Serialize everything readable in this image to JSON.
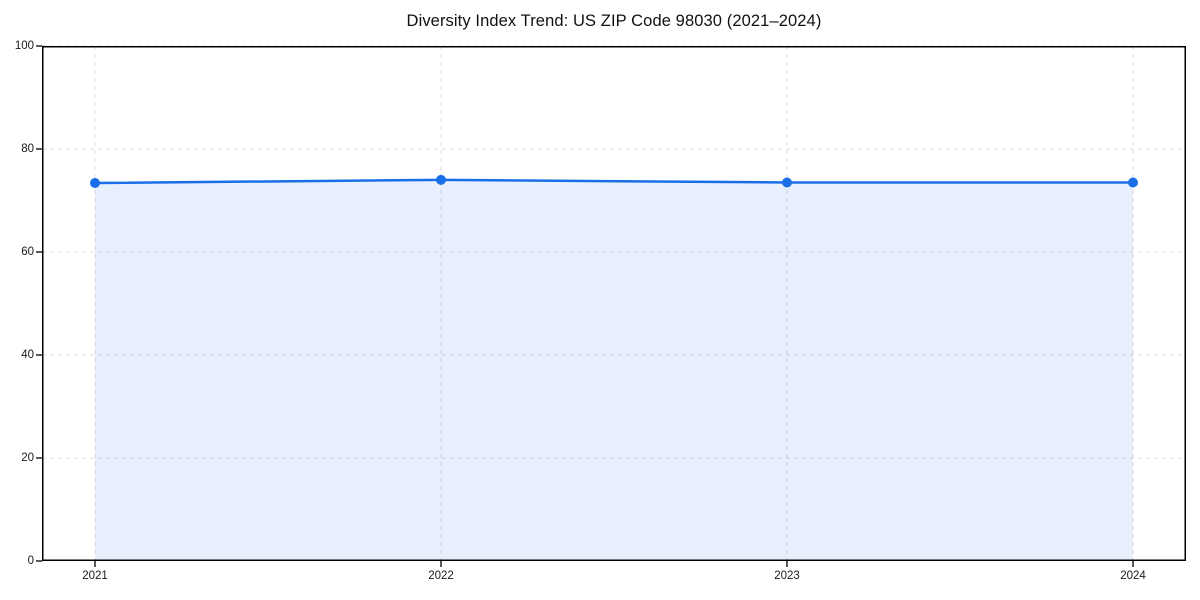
{
  "chart_data": {
    "type": "line",
    "title": "Diversity Index Trend: US ZIP Code 98030 (2021–2024)",
    "categories": [
      "2021",
      "2022",
      "2023",
      "2024"
    ],
    "x": [
      2021,
      2022,
      2023,
      2024
    ],
    "series": [
      {
        "name": "Diversity Index",
        "values": [
          73.4,
          74.0,
          73.5,
          73.5
        ]
      }
    ],
    "xlabel": "",
    "ylabel": "",
    "ylim": [
      0,
      100
    ],
    "yticks": [
      0,
      20,
      40,
      60,
      80,
      100
    ],
    "grid": true,
    "grid_style": "dashed",
    "area_fill": true,
    "legend_position": "none",
    "marker": "circle",
    "colors": {
      "line": "#1a6ee8",
      "marker": "#1a6ee8",
      "fill": "#1a6ee8",
      "fill_opacity": 0.1,
      "grid": "#dcdcdc",
      "spine": "#000000",
      "text": "#1a1a1a",
      "background": "#ffffff"
    }
  }
}
